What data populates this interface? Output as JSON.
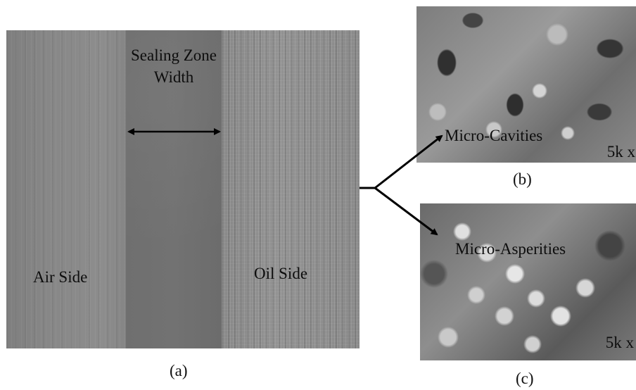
{
  "panel_a": {
    "air_side": "Air Side",
    "sealing_zone": "Sealing Zone Width",
    "oil_side": "Oil Side",
    "caption": "(a)"
  },
  "panel_b": {
    "label": "Micro-Cavities",
    "magnification": "5k x",
    "caption": "(b)"
  },
  "panel_c": {
    "label": "Micro-Asperities",
    "magnification": "5k x",
    "caption": "(c)"
  },
  "colors": {
    "seal_zone": "#707070",
    "air_zone": "#868686",
    "oil_zone": "#8e8e8e",
    "arrow": "#000000"
  }
}
